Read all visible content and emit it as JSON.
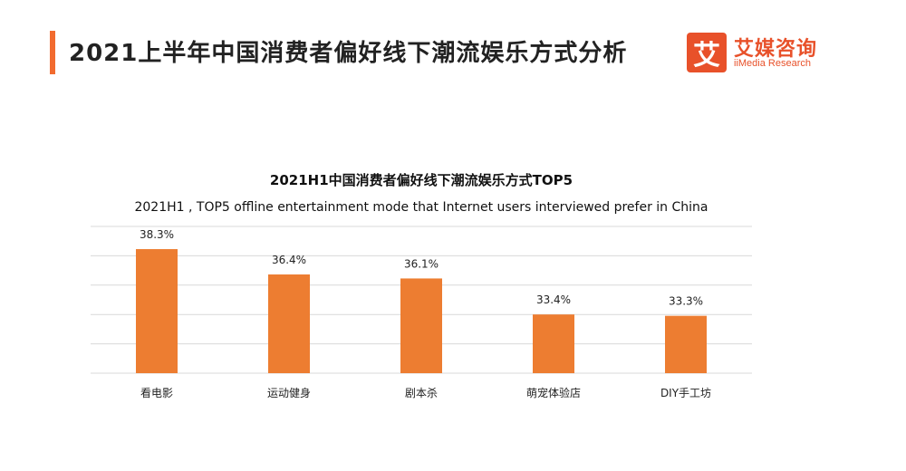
{
  "header": {
    "title": "2021上半年中国消费者偏好线下潮流娱乐方式分析",
    "accent_color": "#f26b2f"
  },
  "logo": {
    "mark": "艾",
    "name": "艾媒咨询",
    "sub": "iiMedia Research",
    "color": "#e8512a"
  },
  "chart_data": {
    "type": "bar",
    "title": "2021H1中国消费者偏好线下潮流娱乐方式TOP5",
    "subtitle": "2021H1 , TOP5 offline entertainment mode that Internet users interviewed prefer in China",
    "categories": [
      "看电影",
      "运动健身",
      "剧本杀",
      "萌宠体验店",
      "DIY手工坊"
    ],
    "values": [
      38.3,
      36.4,
      36.1,
      33.4,
      33.3
    ],
    "value_labels": [
      "38.3%",
      "36.4%",
      "36.1%",
      "33.4%",
      "33.3%"
    ],
    "ylim": [
      29,
      40
    ],
    "grid": true,
    "bar_color": "#ed7d31",
    "xlabel": "",
    "ylabel": ""
  }
}
